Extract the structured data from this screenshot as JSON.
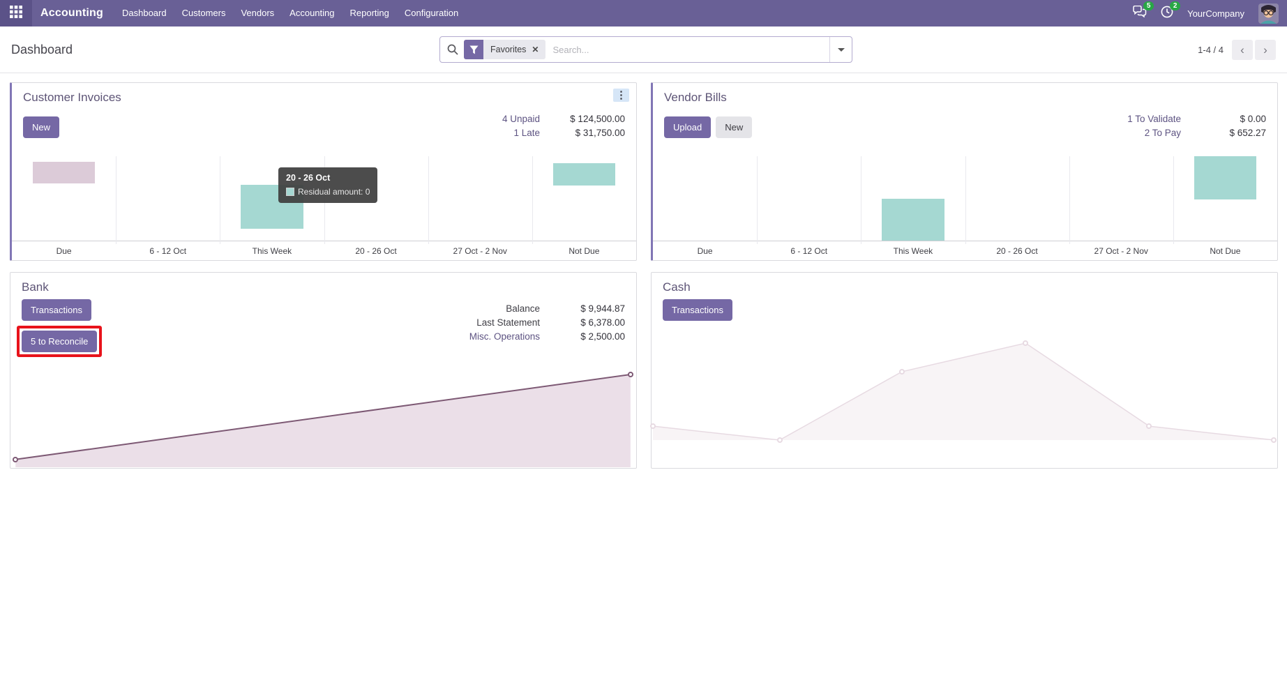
{
  "colors": {
    "nav_bg": "#696096",
    "button_primary": "#7568a5",
    "bar_teal": "#a5d8d2",
    "bar_pink": "#dccbd8",
    "bank_line": "#7d5974",
    "bank_fill": "#ebdfe8",
    "cash_line": "#e7dae2",
    "cash_fill": "#f8f4f6",
    "annotation_red": "#e8131b",
    "badge_green": "#28a745"
  },
  "nav": {
    "app_name": "Accounting",
    "menu": [
      "Dashboard",
      "Customers",
      "Vendors",
      "Accounting",
      "Reporting",
      "Configuration"
    ],
    "messages_badge": "5",
    "activities_badge": "2",
    "company": "YourCompany"
  },
  "control_panel": {
    "breadcrumb": "Dashboard",
    "search": {
      "filter_label": "Favorites",
      "placeholder": "Search...",
      "close": "✕"
    },
    "pager": {
      "display": "1-4 / 4",
      "prev": "‹",
      "next": "›"
    }
  },
  "cards": [
    {
      "title": "Customer Invoices",
      "buttons": [
        {
          "label": "New",
          "style": "primary"
        }
      ],
      "stats": [
        {
          "label": "4 Unpaid",
          "value": "$ 124,500.00",
          "link": true
        },
        {
          "label": "1 Late",
          "value": "$ 31,750.00",
          "link": true
        }
      ],
      "tooltip": {
        "title": "20 - 26 Oct",
        "text": "Residual amount: 0"
      },
      "chart": {
        "type": "bar",
        "categories": [
          "Due",
          "6 - 12 Oct",
          "This Week",
          "20 - 26 Oct",
          "27 Oct - 2 Nov",
          "Not Due"
        ],
        "bars": [
          {
            "category": "Due",
            "color": "#dccbd8",
            "top_pct": 6.5,
            "height_pct": 26
          },
          {
            "category": "This Week",
            "color": "#a5d8d2",
            "top_pct": 33.5,
            "height_pct": 52.5
          },
          {
            "category": "Not Due",
            "color": "#a5d8d2",
            "top_pct": 8,
            "height_pct": 27
          }
        ]
      }
    },
    {
      "title": "Vendor Bills",
      "buttons": [
        {
          "label": "Upload",
          "style": "primary"
        },
        {
          "label": "New",
          "style": "secondary"
        }
      ],
      "stats": [
        {
          "label": "1 To Validate",
          "value": "$ 0.00",
          "link": true
        },
        {
          "label": "2 To Pay",
          "value": "$ 652.27",
          "link": true
        }
      ],
      "chart": {
        "type": "bar",
        "categories": [
          "Due",
          "6 - 12 Oct",
          "This Week",
          "20 - 26 Oct",
          "27 Oct - 2 Nov",
          "Not Due"
        ],
        "bars": [
          {
            "category": "This Week",
            "color": "#a5d8d2",
            "top_pct": 50,
            "height_pct": 50
          },
          {
            "category": "Not Due",
            "color": "#a5d8d2",
            "top_pct": 0,
            "height_pct": 51
          }
        ]
      }
    },
    {
      "title": "Bank",
      "buttons": [
        {
          "label": "Transactions",
          "style": "primary"
        },
        {
          "label": "5 to Reconcile",
          "style": "primary",
          "annotated": true
        }
      ],
      "stats": [
        {
          "label": "Balance",
          "value": "$ 9,944.87",
          "link": false
        },
        {
          "label": "Last Statement",
          "value": "$ 6,378.00",
          "link": false
        },
        {
          "label": "Misc. Operations",
          "value": "$ 2,500.00",
          "link": true
        }
      ],
      "chart": {
        "type": "line",
        "stroke": "#7d5974",
        "fill": "#ebdfe8",
        "stroke_width": 2,
        "baseline_pct": 100,
        "points": [
          {
            "x": 0.7,
            "y": 92
          },
          {
            "x": 99.2,
            "y": 5
          }
        ]
      }
    },
    {
      "title": "Cash",
      "buttons": [
        {
          "label": "Transactions",
          "style": "primary"
        }
      ],
      "stats": [],
      "chart": {
        "type": "line",
        "stroke": "#e7dae2",
        "fill": "#f8f4f6",
        "stroke_width": 1.5,
        "baseline_pct": 79.7,
        "points": [
          {
            "x": 0.1,
            "y": 69.3
          },
          {
            "x": 20.4,
            "y": 79.7
          },
          {
            "x": 40.0,
            "y": 28.6
          },
          {
            "x": 59.8,
            "y": 7.3
          },
          {
            "x": 79.6,
            "y": 69.3
          },
          {
            "x": 99.6,
            "y": 79.7
          }
        ]
      }
    }
  ]
}
